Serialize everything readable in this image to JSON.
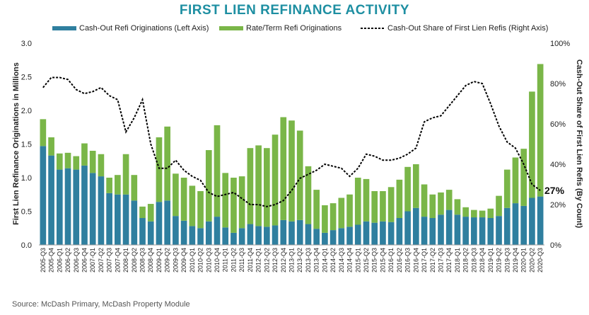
{
  "chart_data": {
    "type": "bar",
    "stacked": true,
    "title": "FIRST LIEN REFINANCE ACTIVITY",
    "source": "Source: McDash Primary, McDash Property Module",
    "ylabel_left": "First Lien Refinance Originations in Millions",
    "ylabel_right": "Cash-Out Share of First Lien Refis (By Count)",
    "ylim_left": [
      0,
      3.0
    ],
    "ylim_right": [
      0,
      100
    ],
    "yticks_left": [
      "0.0",
      "0.5",
      "1.0",
      "1.5",
      "2.0",
      "2.5",
      "3.0"
    ],
    "yticks_right": [
      "0%",
      "20%",
      "40%",
      "60%",
      "80%",
      "100%"
    ],
    "grid": false,
    "legend_position": "top",
    "end_label": "27%",
    "colors": {
      "cashout": "#2f7f9f",
      "rateterm": "#7ab648",
      "line": "#000000",
      "title": "#1e8fa2"
    },
    "categories": [
      "2005-Q3",
      "2005-Q4",
      "2006-Q1",
      "2006-Q2",
      "2006-Q3",
      "2006-Q4",
      "2007-Q1",
      "2007-Q2",
      "2007-Q3",
      "2007-Q4",
      "2008-Q1",
      "2008-Q2",
      "2008-Q3",
      "2008-Q4",
      "2009-Q1",
      "2009-Q2",
      "2009-Q3",
      "2009-Q4",
      "2010-Q1",
      "2010-Q2",
      "2010-Q3",
      "2010-Q4",
      "2011-Q1",
      "2011-Q2",
      "2011-Q3",
      "2011-Q4",
      "2012-Q1",
      "2012-Q2",
      "2012-Q3",
      "2012-Q4",
      "2013-Q1",
      "2013-Q2",
      "2013-Q3",
      "2013-Q4",
      "2014-Q1",
      "2014-Q2",
      "2014-Q3",
      "2014-Q4",
      "2015-Q1",
      "2015-Q2",
      "2015-Q3",
      "2015-Q4",
      "2016-Q1",
      "2016-Q2",
      "2016-Q3",
      "2016-Q4",
      "2017-Q1",
      "2017-Q2",
      "2017-Q3",
      "2017-Q4",
      "2018-Q1",
      "2018-Q2",
      "2018-Q3",
      "2018-Q4",
      "2019-Q1",
      "2019-Q2",
      "2019-Q3",
      "2019-Q4",
      "2020-Q1",
      "2020-Q2",
      "2020-Q3"
    ],
    "series": [
      {
        "name": "Cash-Out Refi Originations (Left Axis)",
        "kind": "bar",
        "values": [
          1.47,
          1.33,
          1.12,
          1.14,
          1.12,
          1.18,
          1.07,
          1.02,
          0.77,
          0.75,
          0.75,
          0.66,
          0.4,
          0.35,
          0.64,
          0.66,
          0.43,
          0.36,
          0.28,
          0.25,
          0.35,
          0.42,
          0.26,
          0.18,
          0.25,
          0.31,
          0.28,
          0.27,
          0.29,
          0.37,
          0.35,
          0.37,
          0.31,
          0.24,
          0.18,
          0.22,
          0.25,
          0.27,
          0.3,
          0.35,
          0.33,
          0.35,
          0.34,
          0.4,
          0.5,
          0.55,
          0.42,
          0.4,
          0.45,
          0.52,
          0.45,
          0.42,
          0.41,
          0.41,
          0.4,
          0.43,
          0.55,
          0.62,
          0.58,
          0.7,
          0.72
        ]
      },
      {
        "name": "Rate/Term Refi Originations",
        "kind": "bar",
        "values": [
          0.4,
          0.27,
          0.24,
          0.23,
          0.2,
          0.33,
          0.33,
          0.33,
          0.23,
          0.29,
          0.6,
          0.38,
          0.17,
          0.26,
          0.96,
          1.1,
          0.63,
          0.64,
          0.6,
          0.55,
          1.06,
          1.36,
          0.81,
          0.82,
          0.77,
          1.13,
          1.2,
          1.17,
          1.35,
          1.53,
          1.5,
          1.33,
          0.86,
          0.58,
          0.41,
          0.4,
          0.45,
          0.48,
          0.7,
          0.63,
          0.47,
          0.45,
          0.52,
          0.57,
          0.66,
          0.65,
          0.48,
          0.35,
          0.33,
          0.3,
          0.23,
          0.14,
          0.11,
          0.1,
          0.14,
          0.3,
          0.57,
          0.68,
          0.85,
          1.58,
          1.97
        ]
      },
      {
        "name": "Cash-Out Share of First Lien Refis (Right Axis)",
        "kind": "line",
        "values": [
          78,
          83,
          83,
          82,
          77,
          75,
          76,
          78,
          74,
          72,
          56,
          63,
          72,
          50,
          38,
          38,
          42,
          37,
          34,
          32,
          26,
          24,
          25,
          26,
          23,
          20,
          20,
          19,
          20,
          22,
          27,
          33,
          35,
          37,
          40,
          39,
          38,
          34,
          38,
          45,
          44,
          42,
          42,
          43,
          45,
          48,
          61,
          63,
          64,
          69,
          74,
          79,
          81,
          80,
          70,
          59,
          51,
          48,
          40,
          30,
          27
        ]
      }
    ]
  }
}
